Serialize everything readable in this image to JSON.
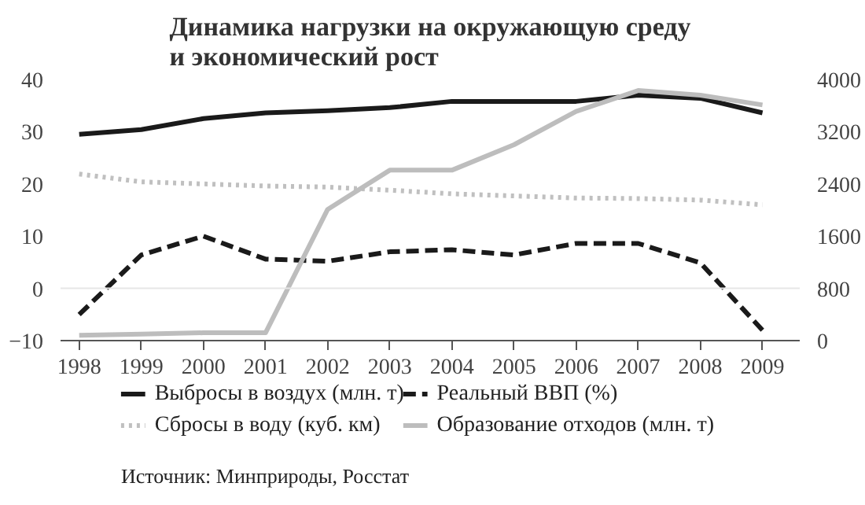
{
  "chart_data": {
    "type": "line",
    "title": "Динамика нагрузки на окружающую среду\nи экономический рост",
    "categories": [
      "1998",
      "1999",
      "2000",
      "2001",
      "2002",
      "2003",
      "2004",
      "2005",
      "2006",
      "2007",
      "2008",
      "2009"
    ],
    "series": [
      {
        "name": "Выбросы в воздух (млн. т)",
        "color": "#1a1a1a",
        "line_style": "solid",
        "values": [
          29.5,
          30.4,
          32.5,
          33.6,
          34,
          34.6,
          35.8,
          35.8,
          35.8,
          37,
          36.4,
          33.6
        ]
      },
      {
        "name": "Сбросы в воду (куб. км)",
        "color": "#c0c0c0",
        "line_style": "dotted",
        "values": [
          21.9,
          20.4,
          20,
          19.6,
          19.4,
          18.8,
          18.1,
          17.7,
          17.3,
          17.2,
          16.9,
          16
        ]
      },
      {
        "name": "Реальный ВВП (%)",
        "color": "#1a1a1a",
        "line_style": "dashed",
        "values": [
          -5,
          6.4,
          10,
          5.6,
          5.2,
          7,
          7.4,
          6.4,
          8.6,
          8.6,
          4.9,
          -8
        ]
      },
      {
        "name": "Образование отходов (млн. т)",
        "color": "#bdbdbd",
        "line_style": "solid",
        "axis": "y2",
        "values": [
          80,
          100,
          120,
          120,
          2010,
          2610,
          2610,
          3000,
          3510,
          3830,
          3760,
          3610
        ]
      }
    ],
    "ylim": [
      -10,
      40
    ],
    "yticks": [
      -10,
      0,
      10,
      20,
      30,
      40
    ],
    "y2lim": [
      0,
      4000
    ],
    "y2ticks": [
      0,
      800,
      1600,
      2400,
      3200,
      4000
    ],
    "ref_lines": [
      {
        "axis": "y",
        "value": 0,
        "color": "#e6e6e6"
      }
    ],
    "grid": false,
    "legend": "bottom",
    "annotations": [
      "Источник: Минприроды, Росстат"
    ]
  }
}
